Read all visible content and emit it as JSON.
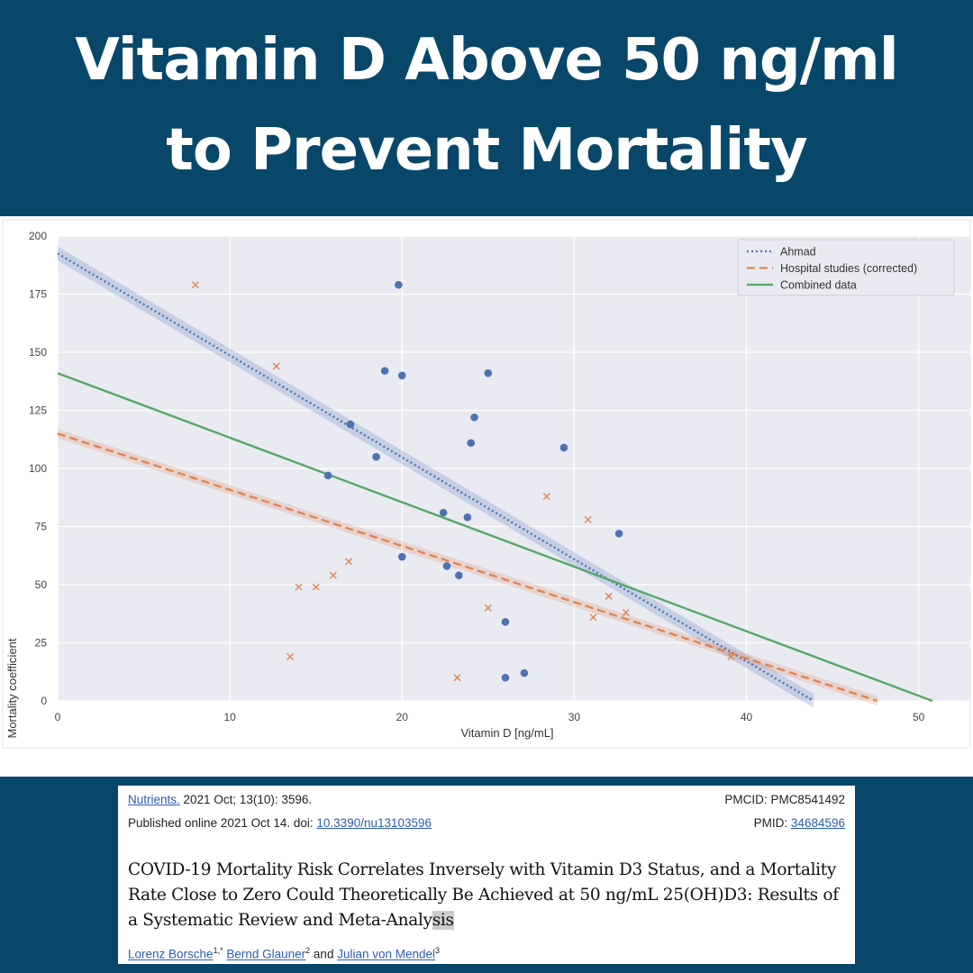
{
  "header": {
    "title_line1": "Vitamin D Above 50 ng/ml",
    "title_line2": "to Prevent Mortality"
  },
  "chart_data": {
    "type": "scatter",
    "xlabel": "Vitamin D [ng/mL]",
    "ylabel": "Mortality coefficient",
    "xlim": [
      0,
      53
    ],
    "ylim": [
      0,
      200
    ],
    "xticks": [
      "0",
      "10",
      "20",
      "30",
      "40",
      "50"
    ],
    "yticks": [
      "0",
      "25",
      "50",
      "75",
      "100",
      "125",
      "150",
      "175",
      "200"
    ],
    "grid": true,
    "legend_position": "top-right",
    "colors": {
      "ahmad": "#4c72b0",
      "hospital": "#dd8452",
      "combined": "#55a868",
      "plot_bg": "#eaeaf2"
    },
    "scatter_series": [
      {
        "marker": "circle",
        "points": [
          [
            19.8,
            179
          ],
          [
            19.0,
            142
          ],
          [
            20.0,
            140
          ],
          [
            25.0,
            141
          ],
          [
            17.0,
            119
          ],
          [
            24.2,
            122
          ],
          [
            24.0,
            111
          ],
          [
            18.5,
            105
          ],
          [
            29.4,
            109
          ],
          [
            15.7,
            97
          ],
          [
            22.4,
            81
          ],
          [
            23.8,
            79
          ],
          [
            32.6,
            72
          ],
          [
            20.0,
            62
          ],
          [
            22.6,
            58
          ],
          [
            23.3,
            54
          ],
          [
            26.0,
            34
          ],
          [
            26.0,
            10
          ],
          [
            27.1,
            12
          ]
        ]
      },
      {
        "marker": "x",
        "points": [
          [
            8.0,
            179
          ],
          [
            12.7,
            144
          ],
          [
            28.4,
            88
          ],
          [
            30.8,
            78
          ],
          [
            16.9,
            60
          ],
          [
            16.0,
            54
          ],
          [
            14.0,
            49
          ],
          [
            15.0,
            49
          ],
          [
            32.0,
            45
          ],
          [
            25.0,
            40
          ],
          [
            33.0,
            38
          ],
          [
            31.1,
            36
          ],
          [
            13.5,
            19
          ],
          [
            23.2,
            10
          ],
          [
            39.1,
            19
          ]
        ]
      }
    ],
    "lines": [
      {
        "name": "Ahmad",
        "style": "dotted",
        "x": [
          0,
          43.9
        ],
        "y": [
          192.5,
          0
        ],
        "band": 3
      },
      {
        "name": "Hospital studies (corrected)",
        "style": "dashed",
        "x": [
          0,
          47.6
        ],
        "y": [
          115,
          0
        ],
        "band": 2
      },
      {
        "name": "Combined data",
        "style": "solid",
        "x": [
          0,
          50.8
        ],
        "y": [
          141,
          0
        ],
        "band": 0
      }
    ]
  },
  "citation": {
    "journal_link": "Nutrients.",
    "journal_info": " 2021 Oct; 13(10): 3596.",
    "pmcid_label": "PMCID: ",
    "pmcid": "PMC8541492",
    "published_prefix": "Published online 2021 Oct 14. doi: ",
    "doi": "10.3390/nu13103596",
    "pmid_label": "PMID: ",
    "pmid": "34684596",
    "paper_title_main": "COVID-19 Mortality Risk Correlates Inversely with Vitamin D3 Status, and a Mortality Rate Close to Zero Could Theoretically Be Achieved at 50 ng/mL 25(OH)D3: Results of a Systematic Review and Meta-Analy",
    "paper_title_highlight": "sis",
    "authors": [
      {
        "name": "Lorenz Borsche",
        "sup": "1,*",
        "sep": " "
      },
      {
        "name": "Bernd Glauner",
        "sup": "2",
        "sep": " and "
      },
      {
        "name": "Julian von Mendel",
        "sup": "3",
        "sep": ""
      }
    ]
  }
}
